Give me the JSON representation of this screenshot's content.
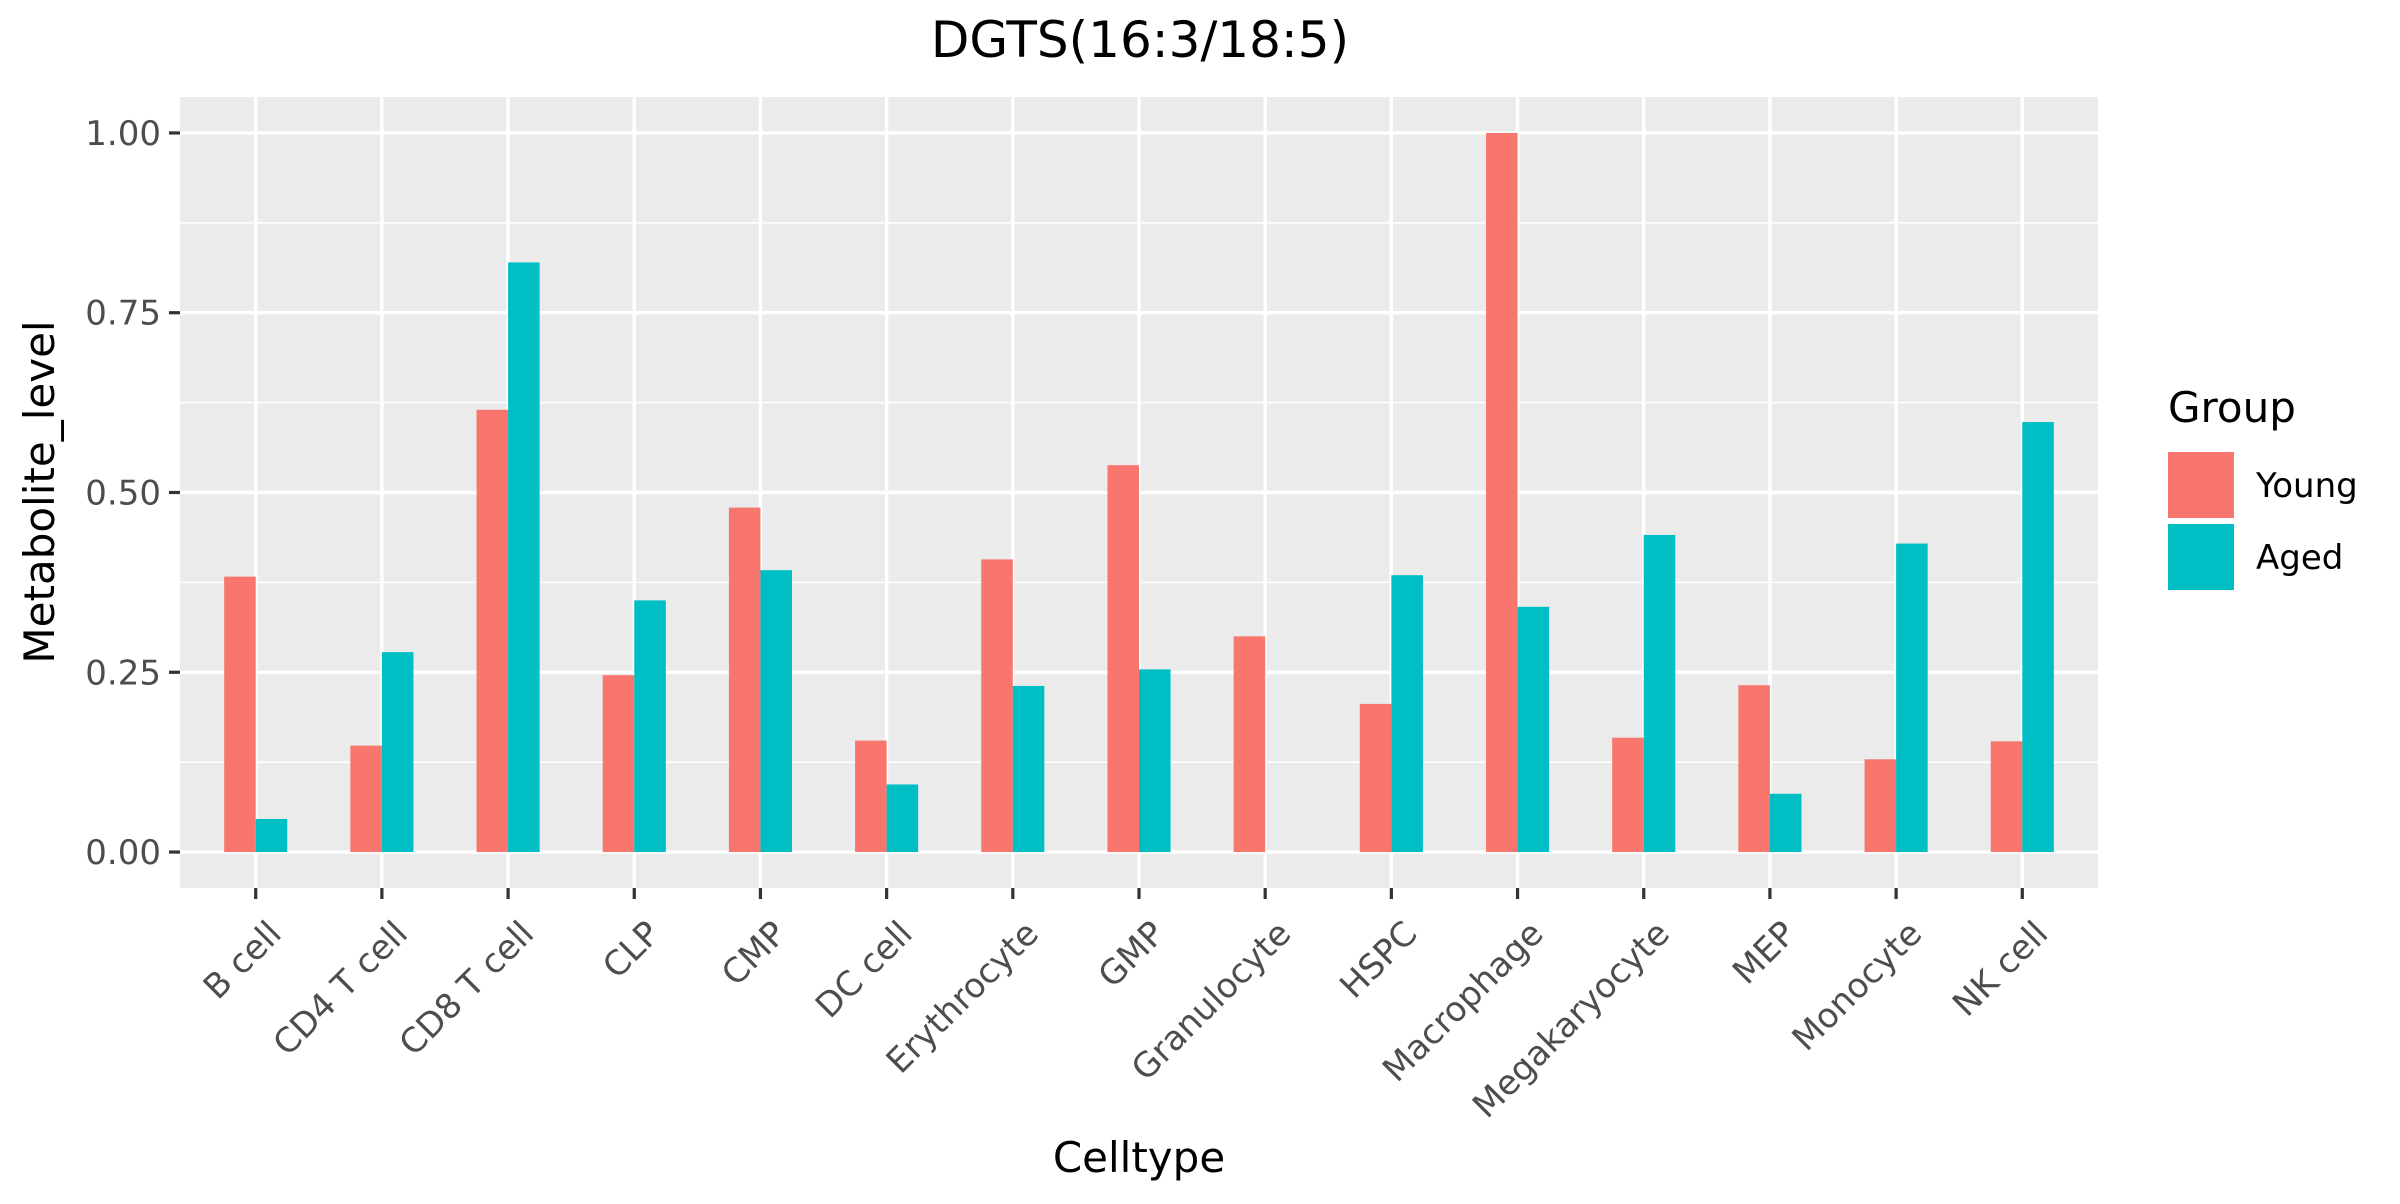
{
  "chart_data": {
    "type": "bar",
    "title": "DGTS(16:3/18:5)",
    "xlabel": "Celltype",
    "ylabel": "Metabolite_level",
    "categories": [
      "B cell",
      "CD4 T cell",
      "CD8 T cell",
      "CLP",
      "CMP",
      "DC cell",
      "Erythrocyte",
      "GMP",
      "Granulocyte",
      "HSPC",
      "Macrophage",
      "Megakaryocyte",
      "MEP",
      "Monocyte",
      "NK cell"
    ],
    "series": [
      {
        "name": "Young",
        "color": "#F8766D",
        "values": [
          0.383,
          0.148,
          0.615,
          0.246,
          0.479,
          0.155,
          0.407,
          0.538,
          0.3,
          0.206,
          1.0,
          0.159,
          0.232,
          0.129,
          0.154
        ]
      },
      {
        "name": "Aged",
        "color": "#00BFC4",
        "values": [
          0.046,
          0.278,
          0.82,
          0.35,
          0.392,
          0.094,
          0.231,
          0.254,
          null,
          0.385,
          0.341,
          0.441,
          0.081,
          0.429,
          0.598
        ]
      }
    ],
    "ylim": [
      -0.05,
      1.05
    ],
    "yticks": [
      0.0,
      0.25,
      0.5,
      0.75,
      1.0
    ],
    "ytick_labels": [
      "0.00",
      "0.25",
      "0.50",
      "0.75",
      "1.00"
    ],
    "legend": {
      "title": "Group",
      "position": "right"
    },
    "grid": true,
    "panel_background": "#EBEBEB"
  }
}
